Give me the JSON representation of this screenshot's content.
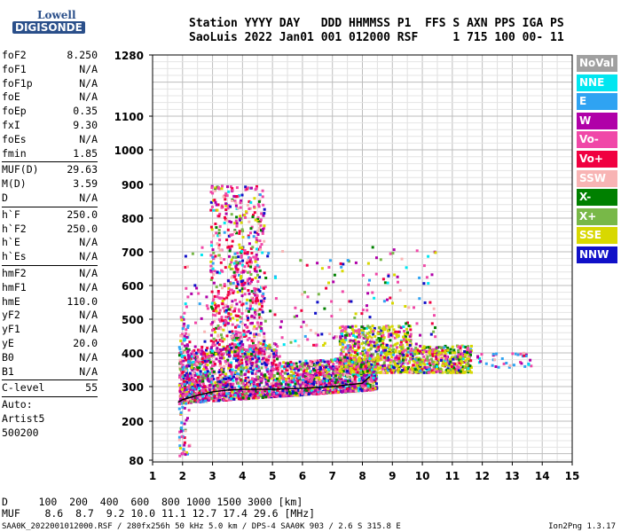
{
  "logo": {
    "line1": "Lowell",
    "line2": "DIGISONDE"
  },
  "header": {
    "labels": "Station YYYY DAY   DDD HHMMSS P1  FFS S AXN PPS IGA PS",
    "values": "SaoLuis 2022 Jan01 001 012000 RSF     1 715 100 00- 11"
  },
  "params": [
    {
      "name": "foF2",
      "value": "8.250"
    },
    {
      "name": "foF1",
      "value": "N/A"
    },
    {
      "name": "foF1p",
      "value": "N/A"
    },
    {
      "name": "foE",
      "value": "N/A"
    },
    {
      "name": "foEp",
      "value": "0.35"
    },
    {
      "name": "fxI",
      "value": "9.30"
    },
    {
      "name": "foEs",
      "value": "N/A"
    },
    {
      "name": "fmin",
      "value": "1.85"
    },
    {
      "sep": true
    },
    {
      "name": "MUF(D)",
      "value": "29.63"
    },
    {
      "name": "M(D)",
      "value": "3.59"
    },
    {
      "name": "D",
      "value": "N/A"
    },
    {
      "sep": true
    },
    {
      "name": "h`F",
      "value": "250.0"
    },
    {
      "name": "h`F2",
      "value": "250.0"
    },
    {
      "name": "h`E",
      "value": "N/A"
    },
    {
      "name": "h`Es",
      "value": "N/A"
    },
    {
      "sep": true
    },
    {
      "name": "hmF2",
      "value": "N/A"
    },
    {
      "name": "hmF1",
      "value": "N/A"
    },
    {
      "name": "hmE",
      "value": "110.0"
    },
    {
      "name": "yF2",
      "value": "N/A"
    },
    {
      "name": "yF1",
      "value": "N/A"
    },
    {
      "name": "yE",
      "value": "20.0"
    },
    {
      "name": "B0",
      "value": "N/A"
    },
    {
      "name": "B1",
      "value": "N/A"
    },
    {
      "sep": true
    },
    {
      "name": "C-level",
      "value": "55"
    },
    {
      "sep": true
    },
    {
      "text": "Auto:"
    },
    {
      "text": "Artist5"
    },
    {
      "text": "500200"
    }
  ],
  "legend": [
    {
      "label": "NoVal",
      "color": "#a0a0a0"
    },
    {
      "label": "NNE",
      "color": "#00e6f0"
    },
    {
      "label": "E",
      "color": "#2fa3f2"
    },
    {
      "label": "W",
      "color": "#b000a8"
    },
    {
      "label": "Vo-",
      "color": "#f048a8"
    },
    {
      "label": "Vo+",
      "color": "#f00040"
    },
    {
      "label": "SSW",
      "color": "#f8b4b4"
    },
    {
      "label": "X-",
      "color": "#008000"
    },
    {
      "label": "X+",
      "color": "#78b848"
    },
    {
      "label": "SSE",
      "color": "#d8d800"
    },
    {
      "label": "NNW",
      "color": "#1010c8"
    }
  ],
  "footer": {
    "d_line": "D     100  200  400  600  800 1000 1500 3000 [km]",
    "muf_line": "MUF    8.6  8.7  9.2 10.0 11.1 12.7 17.4 29.6 [MHz]",
    "file_info": "SAA0K_2022001012000.RSF / 280fx256h 50 kHz 5.0 km / DPS-4 SAA0K 903 / 2.6 S 315.8 E",
    "version": "Ion2Png 1.3.17"
  },
  "chart_data": {
    "type": "scatter",
    "title": "",
    "xlabel": "",
    "ylabel": "",
    "xlim": [
      1,
      15
    ],
    "ylim": [
      80,
      1280
    ],
    "y_scale": "nonlinear",
    "x_ticks": [
      "1",
      "2",
      "3",
      "4",
      "5",
      "6",
      "7",
      "8",
      "9",
      "10",
      "11",
      "12",
      "13",
      "14",
      "15"
    ],
    "y_ticks": [
      "80",
      "200",
      "300",
      "400",
      "500",
      "600",
      "700",
      "800",
      "900",
      "1000",
      "1100",
      "1280"
    ],
    "grid": true,
    "legend_position": "right",
    "trace_x": [
      1.85,
      2.0,
      2.5,
      3.0,
      3.5,
      4.0,
      5.0,
      6.0,
      7.0,
      8.0,
      8.25
    ],
    "trace_y": [
      255,
      262,
      275,
      285,
      290,
      292,
      292,
      295,
      300,
      310,
      330
    ]
  }
}
